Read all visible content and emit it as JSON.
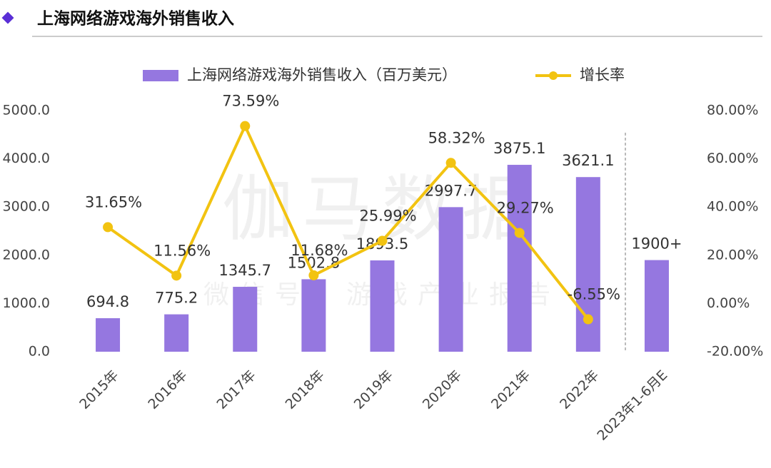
{
  "title": "上海网络游戏海外销售收入",
  "chart_data": {
    "type": "bar-line",
    "watermark": "伽马数据",
    "watermark_sub": "微信号：游戏产业报告",
    "categories": [
      "2015年",
      "2016年",
      "2017年",
      "2018年",
      "2019年",
      "2020年",
      "2021年",
      "2022年",
      "2023年1-6月E"
    ],
    "series": [
      {
        "name": "上海网络游戏海外销售收入（百万美元）",
        "type": "bar",
        "color": "#9577e0",
        "values": [
          694.8,
          775.2,
          1345.7,
          1502.8,
          1893.5,
          2997.7,
          3875.1,
          3621.1,
          1900
        ],
        "value_labels": [
          "694.8",
          "775.2",
          "1345.7",
          "1502.8",
          "1893.5",
          "2997.7",
          "3875.1",
          "3621.1",
          "1900+"
        ]
      },
      {
        "name": "增长率",
        "type": "line",
        "axis": "y2",
        "color": "#f2c311",
        "values": [
          31.65,
          11.56,
          73.59,
          11.68,
          25.99,
          58.32,
          29.27,
          -6.55,
          null
        ],
        "value_labels": [
          "31.65%",
          "11.56%",
          "73.59%",
          "11.68%",
          "25.99%",
          "58.32%",
          "29.27%",
          "-6.55%",
          null
        ]
      }
    ],
    "ylim": [
      0,
      5000
    ],
    "yticks": [
      {
        "value": 0,
        "label": "0.0"
      },
      {
        "value": 1000,
        "label": "1000.0"
      },
      {
        "value": 2000,
        "label": "2000.0"
      },
      {
        "value": 3000,
        "label": "3000.0"
      },
      {
        "value": 4000,
        "label": "4000.0"
      },
      {
        "value": 5000,
        "label": "5000.0"
      }
    ],
    "y2lim": [
      -20,
      80
    ],
    "y2ticks": [
      {
        "value": -20,
        "label": "-20.00%"
      },
      {
        "value": 0,
        "label": "0.00%"
      },
      {
        "value": 20,
        "label": "20.00%"
      },
      {
        "value": 40,
        "label": "40.00%"
      },
      {
        "value": 60,
        "label": "60.00%"
      },
      {
        "value": 80,
        "label": "80.00%"
      }
    ],
    "grid": false
  }
}
